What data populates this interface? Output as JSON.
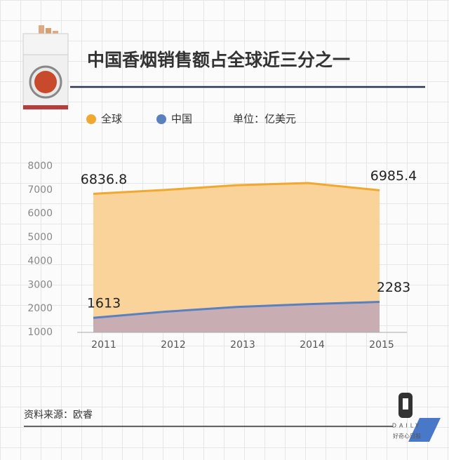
{
  "chart_data": {
    "type": "area",
    "title": "中国香烟销售额占全球近三分之一",
    "unit": "单位：亿美元",
    "source": "资料来源：欧睿",
    "watermark": [
      "DAILY",
      "好奇心日报"
    ],
    "categories": [
      "2011",
      "2012",
      "2013",
      "2014",
      "2015"
    ],
    "series": [
      {
        "name": "全球",
        "color": "#f0a830",
        "fill": "#f9d39a",
        "values": [
          6836.8,
          7000,
          7200,
          7290,
          6985.4
        ]
      },
      {
        "name": "中国",
        "color": "#5a80c0",
        "fill": "#c8aeb2",
        "values": [
          1613,
          1870,
          2070,
          2190,
          2283
        ]
      }
    ],
    "ylim": [
      1000,
      8000
    ],
    "yticks": [
      1000,
      2000,
      3000,
      4000,
      5000,
      6000,
      7000,
      8000
    ]
  }
}
